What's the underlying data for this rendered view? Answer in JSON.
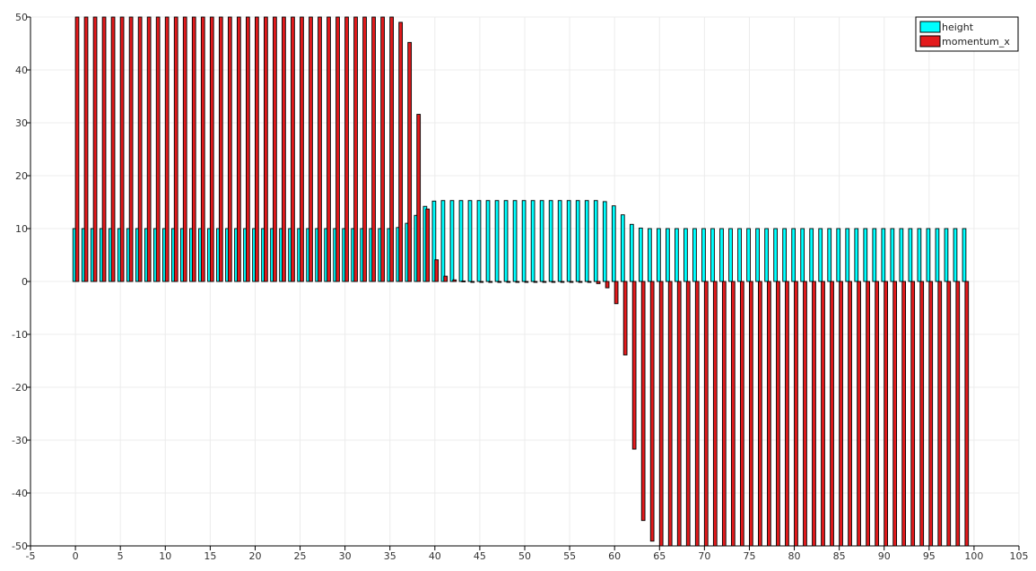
{
  "chart_data": {
    "type": "bar",
    "title": "",
    "xlabel": "",
    "ylabel": "",
    "xlim": [
      -5,
      105
    ],
    "ylim": [
      -50,
      50
    ],
    "grid": true,
    "legend_position": "top-right",
    "x_ticks": [
      -5,
      0,
      5,
      10,
      15,
      20,
      25,
      30,
      35,
      40,
      45,
      50,
      55,
      60,
      65,
      70,
      75,
      80,
      85,
      90,
      95,
      100,
      105
    ],
    "y_ticks": [
      -50,
      -40,
      -30,
      -20,
      -10,
      0,
      10,
      20,
      30,
      40,
      50
    ],
    "x": [
      0,
      1,
      2,
      3,
      4,
      5,
      6,
      7,
      8,
      9,
      10,
      11,
      12,
      13,
      14,
      15,
      16,
      17,
      18,
      19,
      20,
      21,
      22,
      23,
      24,
      25,
      26,
      27,
      28,
      29,
      30,
      31,
      32,
      33,
      34,
      35,
      36,
      37,
      38,
      39,
      40,
      41,
      42,
      43,
      44,
      45,
      46,
      47,
      48,
      49,
      50,
      51,
      52,
      53,
      54,
      55,
      56,
      57,
      58,
      59,
      60,
      61,
      62,
      63,
      64,
      65,
      66,
      67,
      68,
      69,
      70,
      71,
      72,
      73,
      74,
      75,
      76,
      77,
      78,
      79,
      80,
      81,
      82,
      83,
      84,
      85,
      86,
      87,
      88,
      89,
      90,
      91,
      92,
      93,
      94,
      95,
      96,
      97,
      98,
      99
    ],
    "series": [
      {
        "name": "height",
        "color": "#00ffff",
        "values": [
          10,
          10,
          10,
          10,
          10,
          10,
          10,
          10,
          10,
          10,
          10,
          10,
          10,
          10,
          10,
          10,
          10,
          10,
          10,
          10,
          10,
          10,
          10,
          10,
          10,
          10,
          10,
          10,
          10,
          10,
          10,
          10,
          10,
          10,
          10,
          10,
          10.2,
          11,
          12.5,
          14.2,
          15.2,
          15.3,
          15.3,
          15.3,
          15.3,
          15.3,
          15.3,
          15.3,
          15.3,
          15.3,
          15.3,
          15.3,
          15.3,
          15.3,
          15.3,
          15.3,
          15.3,
          15.3,
          15.3,
          15.1,
          14.3,
          12.6,
          10.8,
          10.1,
          10,
          10,
          10,
          10,
          10,
          10,
          10,
          10,
          10,
          10,
          10,
          10,
          10,
          10,
          10,
          10,
          10,
          10,
          10,
          10,
          10,
          10,
          10,
          10,
          10,
          10,
          10,
          10,
          10,
          10,
          10,
          10,
          10,
          10,
          10,
          10
        ]
      },
      {
        "name": "momentum_x",
        "color": "#e31a1c",
        "values": [
          50,
          50,
          50,
          50,
          50,
          50,
          50,
          50,
          50,
          50,
          50,
          50,
          50,
          50,
          50,
          50,
          50,
          50,
          50,
          50,
          50,
          50,
          50,
          50,
          50,
          50,
          50,
          50,
          50,
          50,
          50,
          50,
          50,
          50,
          50,
          50,
          49,
          45.2,
          31.6,
          13.7,
          4.1,
          1,
          0.3,
          0.1,
          0,
          0,
          0,
          0,
          0,
          0,
          0,
          0,
          0,
          0,
          0,
          0,
          0,
          -0.1,
          -0.4,
          -1.2,
          -4.2,
          -13.9,
          -31.7,
          -45.2,
          -49.1,
          -50,
          -50,
          -50,
          -50,
          -50,
          -50,
          -50,
          -50,
          -50,
          -50,
          -50,
          -50,
          -50,
          -50,
          -50,
          -50,
          -50,
          -50,
          -50,
          -50,
          -50,
          -50,
          -50,
          -50,
          -50,
          -50,
          -50,
          -50,
          -50,
          -50,
          -50,
          -50,
          -50,
          -50,
          -50
        ]
      }
    ]
  }
}
